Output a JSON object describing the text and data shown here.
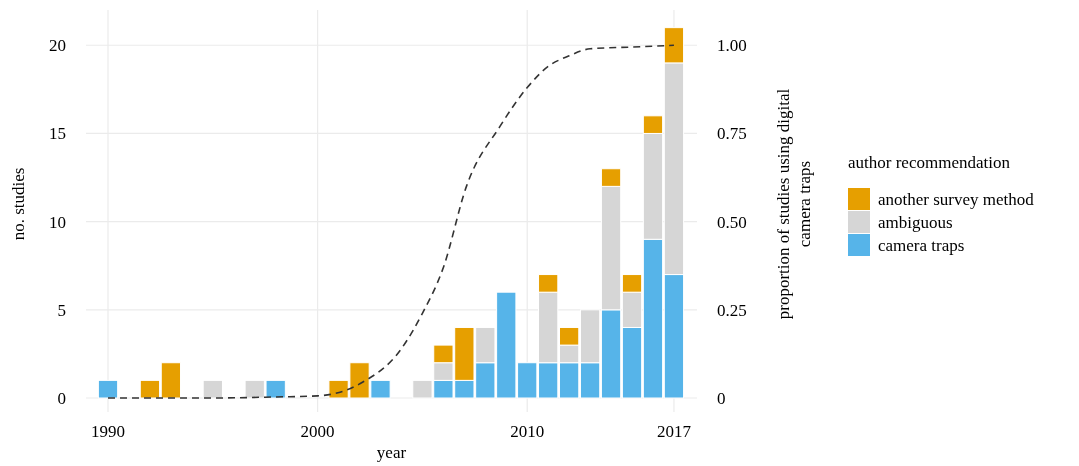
{
  "chart_data": {
    "type": "bar",
    "stacked": true,
    "xlabel": "year",
    "ylabel": "no. studies",
    "y2label": "proportion of studies using digital camera traps",
    "legend_title": "author recommendation",
    "legend": "right",
    "grid": true,
    "x": [
      1990,
      1992,
      1993,
      1995,
      1997,
      1998,
      2001,
      2002,
      2003,
      2005,
      2006,
      2007,
      2008,
      2009,
      2010,
      2011,
      2012,
      2013,
      2014,
      2015,
      2016,
      2017
    ],
    "xlim": [
      1988.95,
      2018.1
    ],
    "xticks": [
      1990,
      2000,
      2010,
      2017
    ],
    "ylim": [
      0,
      22
    ],
    "yticks": [
      0,
      5,
      10,
      15,
      20
    ],
    "y2lim": [
      0,
      1.1
    ],
    "y2ticks": [
      0,
      0.25,
      {
        "value": 0.5,
        "label": "0.50"
      },
      0.75,
      {
        "value": 1,
        "label": "1.00"
      }
    ],
    "series": [
      {
        "name": "camera traps",
        "color": "#56b4e9",
        "values": [
          1,
          0,
          0,
          0,
          0,
          1,
          0,
          0,
          1,
          0,
          1,
          1,
          2,
          6,
          2,
          2,
          2,
          2,
          5,
          4,
          9,
          7
        ]
      },
      {
        "name": "ambiguous",
        "color": "#d6d6d6",
        "values": [
          0,
          0,
          0,
          1,
          1,
          0,
          0,
          0,
          0,
          1,
          1,
          0,
          2,
          0,
          0,
          4,
          1,
          3,
          7,
          2,
          6,
          12
        ]
      },
      {
        "name": "another survey method",
        "color": "#e69f00",
        "values": [
          0,
          1,
          2,
          0,
          0,
          0,
          1,
          2,
          0,
          0,
          1,
          3,
          0,
          0,
          0,
          1,
          1,
          0,
          1,
          1,
          1,
          2
        ]
      },
      {
        "type": "line",
        "axis": "y2",
        "color": "#333333",
        "line_style": "dashed",
        "x": [
          1990,
          1995,
          1998,
          2000,
          2002,
          2004,
          2005,
          2006,
          2007.1,
          2008.7,
          2010,
          2011,
          2012,
          2013,
          2015,
          2017
        ],
        "values": [
          0,
          0,
          0.003,
          0.006,
          0.04,
          0.14,
          0.24,
          0.37,
          0.6,
          0.77,
          0.88,
          0.94,
          0.97,
          0.99,
          0.995,
          1
        ]
      }
    ]
  }
}
